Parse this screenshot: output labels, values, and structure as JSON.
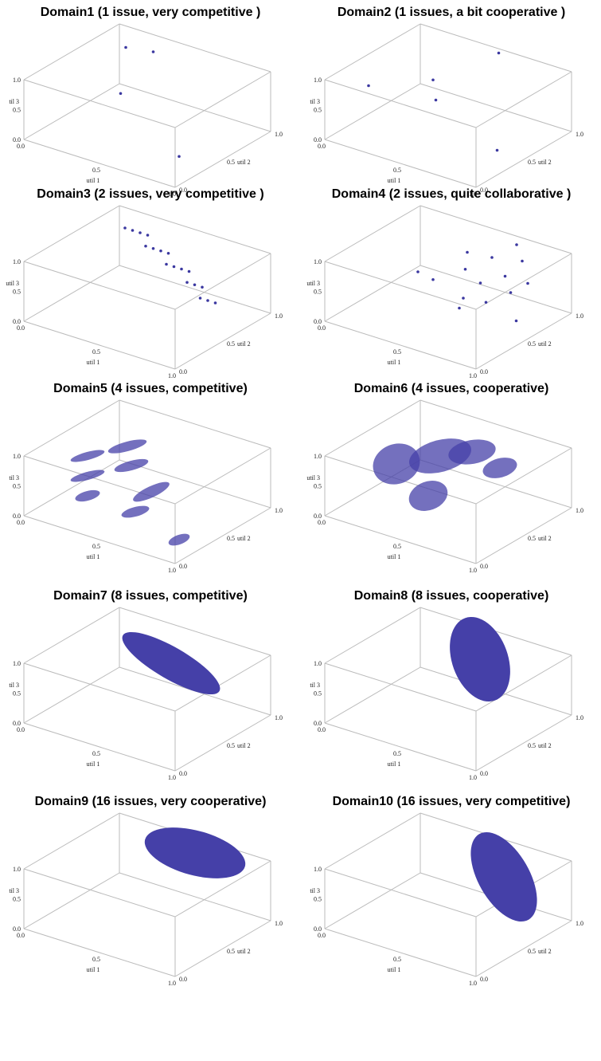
{
  "panels": [
    {
      "title": "Domain1 (1 issue, very competitive )",
      "axes": [
        "util 1",
        "util 2",
        "til 3"
      ],
      "ticks": [
        "0.0",
        "0.5",
        "1.0"
      ],
      "points": [
        [
          0.2,
          0.75,
          1.0
        ],
        [
          0.35,
          0.8,
          1.0
        ],
        [
          0.45,
          0.3,
          0.85
        ],
        [
          0.9,
          0.2,
          0.25
        ]
      ]
    },
    {
      "title": "Domain2 (1 issues, a bit cooperative )",
      "axes": [
        "util 1",
        "util 2",
        "til 3"
      ],
      "ticks": [
        "0.0",
        "0.5",
        "1.0"
      ],
      "points": [
        [
          0.1,
          0.3,
          0.7
        ],
        [
          0.4,
          0.5,
          0.85
        ],
        [
          0.45,
          0.45,
          0.6
        ],
        [
          0.55,
          0.95,
          1.0
        ],
        [
          0.95,
          0.3,
          0.3
        ]
      ]
    },
    {
      "title": "Domain3 (2 issues, very competitive )",
      "axes": [
        "util 1",
        "util 2",
        "util 3"
      ],
      "ticks": [
        "0.0",
        "0.5",
        "1.0"
      ],
      "points": [
        [
          0.1,
          0.9,
          0.8
        ],
        [
          0.15,
          0.9,
          0.8
        ],
        [
          0.2,
          0.9,
          0.8
        ],
        [
          0.25,
          0.9,
          0.8
        ],
        [
          0.3,
          0.8,
          0.75
        ],
        [
          0.35,
          0.8,
          0.75
        ],
        [
          0.4,
          0.8,
          0.75
        ],
        [
          0.45,
          0.8,
          0.75
        ],
        [
          0.5,
          0.7,
          0.7
        ],
        [
          0.55,
          0.7,
          0.7
        ],
        [
          0.6,
          0.7,
          0.7
        ],
        [
          0.65,
          0.7,
          0.7
        ],
        [
          0.7,
          0.6,
          0.65
        ],
        [
          0.75,
          0.6,
          0.65
        ],
        [
          0.8,
          0.6,
          0.65
        ],
        [
          0.85,
          0.5,
          0.6
        ],
        [
          0.9,
          0.5,
          0.6
        ],
        [
          0.95,
          0.5,
          0.6
        ]
      ]
    },
    {
      "title": "Domain4 (2 issues, quite collaborative )",
      "axes": [
        "util 1",
        "util 2",
        "util 3"
      ],
      "ticks": [
        "0.0",
        "0.5",
        "1.0"
      ],
      "points": [
        [
          0.3,
          0.5,
          0.6
        ],
        [
          0.4,
          0.5,
          0.55
        ],
        [
          0.5,
          0.7,
          0.9
        ],
        [
          0.55,
          0.6,
          0.75
        ],
        [
          0.6,
          0.8,
          0.8
        ],
        [
          0.6,
          0.5,
          0.4
        ],
        [
          0.65,
          0.6,
          0.6
        ],
        [
          0.7,
          0.9,
          1.0
        ],
        [
          0.75,
          0.7,
          0.7
        ],
        [
          0.75,
          0.5,
          0.45
        ],
        [
          0.8,
          0.8,
          0.9
        ],
        [
          0.85,
          0.6,
          0.6
        ],
        [
          0.9,
          0.7,
          0.7
        ],
        [
          0.95,
          0.5,
          0.3
        ],
        [
          0.7,
          0.3,
          0.5
        ]
      ]
    },
    {
      "title": "Domain5 (4 issues, competitive)",
      "axes": [
        "util 1",
        "util 2",
        "til 3"
      ],
      "ticks": [
        "0.0",
        "0.5",
        "1.0"
      ]
    },
    {
      "title": "Domain6 (4 issues, cooperative)",
      "axes": [
        "util 1",
        "util 2",
        "util 3"
      ],
      "ticks": [
        "0.0",
        "0.5",
        "1.0"
      ]
    },
    {
      "title": "Domain7 (8 issues, competitive)",
      "axes": [
        "util 1",
        "util 2",
        "til 3"
      ],
      "ticks": [
        "0.0",
        "0.5",
        "1.0"
      ]
    },
    {
      "title": "Domain8 (8 issues, cooperative)",
      "axes": [
        "util 1",
        "util 2",
        "til 3"
      ],
      "ticks": [
        "0.0",
        "0.5",
        "1.0"
      ]
    },
    {
      "title": "Domain9 (16 issues, very cooperative)",
      "axes": [
        "util 1",
        "util 2",
        "til 3"
      ],
      "ticks": [
        "0.0",
        "0.5",
        "1.0"
      ]
    },
    {
      "title": "Domain10 (16 issues, very competitive)",
      "axes": [
        "util 1",
        "util 2",
        "til 3"
      ],
      "ticks": [
        "0.0",
        "0.5",
        "1.0"
      ]
    }
  ]
}
